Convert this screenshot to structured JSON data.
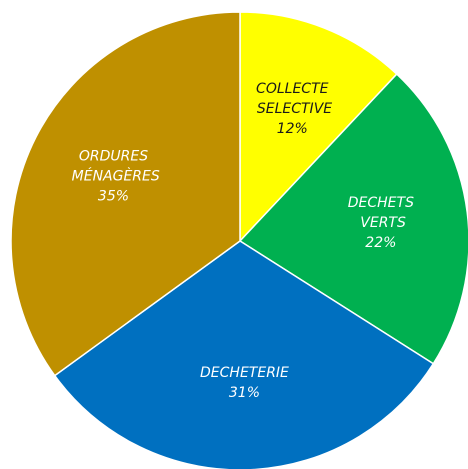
{
  "chart_data": {
    "type": "pie",
    "categories": [
      "COLLECTE SELECTIVE",
      "DECHETS VERTS",
      "DECHETERIE",
      "ORDURES MÉNAGÈRES"
    ],
    "values": [
      12,
      22,
      31,
      35
    ],
    "value_labels": [
      "12%",
      "22%",
      "31%",
      "35%"
    ],
    "colors": [
      "#ffff00",
      "#00b050",
      "#0070c0",
      "#bf9000"
    ]
  }
}
